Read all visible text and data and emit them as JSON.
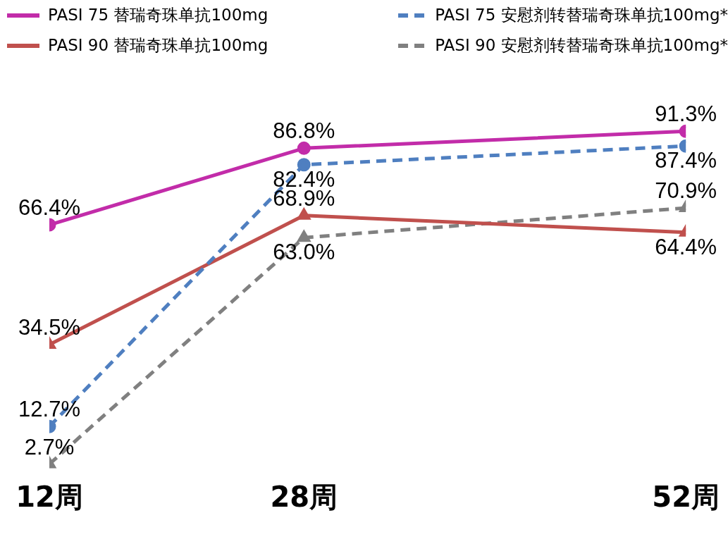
{
  "chart_data": {
    "type": "line",
    "x": [
      12,
      28,
      52
    ],
    "xlim": [
      12,
      52
    ],
    "xticks": [
      {
        "value": 12,
        "label": "12周"
      },
      {
        "value": 28,
        "label": "28周"
      },
      {
        "value": 52,
        "label": "52周"
      }
    ],
    "tick_labels": "x",
    "grid": false,
    "legend": "top",
    "series": [
      {
        "name": "PASI 75 替瑞奇珠单抗100mg",
        "color": "#c22ca9",
        "values": [
          66.4,
          86.8,
          91.3
        ],
        "value_labels": [
          "66.4%",
          "86.8%",
          "91.3%"
        ],
        "marker": "circle",
        "line_style": "solid"
      },
      {
        "name": "PASI 75 安慰剂转替瑞奇珠单抗100mg*",
        "color": "#4f7fc0",
        "values": [
          12.7,
          82.4,
          87.4
        ],
        "value_labels": [
          "12.7%",
          "82.4%",
          "87.4%"
        ],
        "marker": "circle",
        "line_style": "dashed"
      },
      {
        "name": "PASI 90 替瑞奇珠单抗100mg",
        "color": "#c0504d",
        "values": [
          34.5,
          68.9,
          64.4
        ],
        "value_labels": [
          "34.5%",
          "68.9%",
          "64.4%"
        ],
        "marker": "triangle",
        "line_style": "solid"
      },
      {
        "name": "PASI 90 安慰剂转替瑞奇珠单抗100mg*",
        "color": "#808080",
        "values": [
          2.7,
          63.0,
          70.9
        ],
        "value_labels": [
          "2.7%",
          "63.0%",
          "70.9%"
        ],
        "marker": "triangle",
        "line_style": "dashed"
      }
    ]
  }
}
